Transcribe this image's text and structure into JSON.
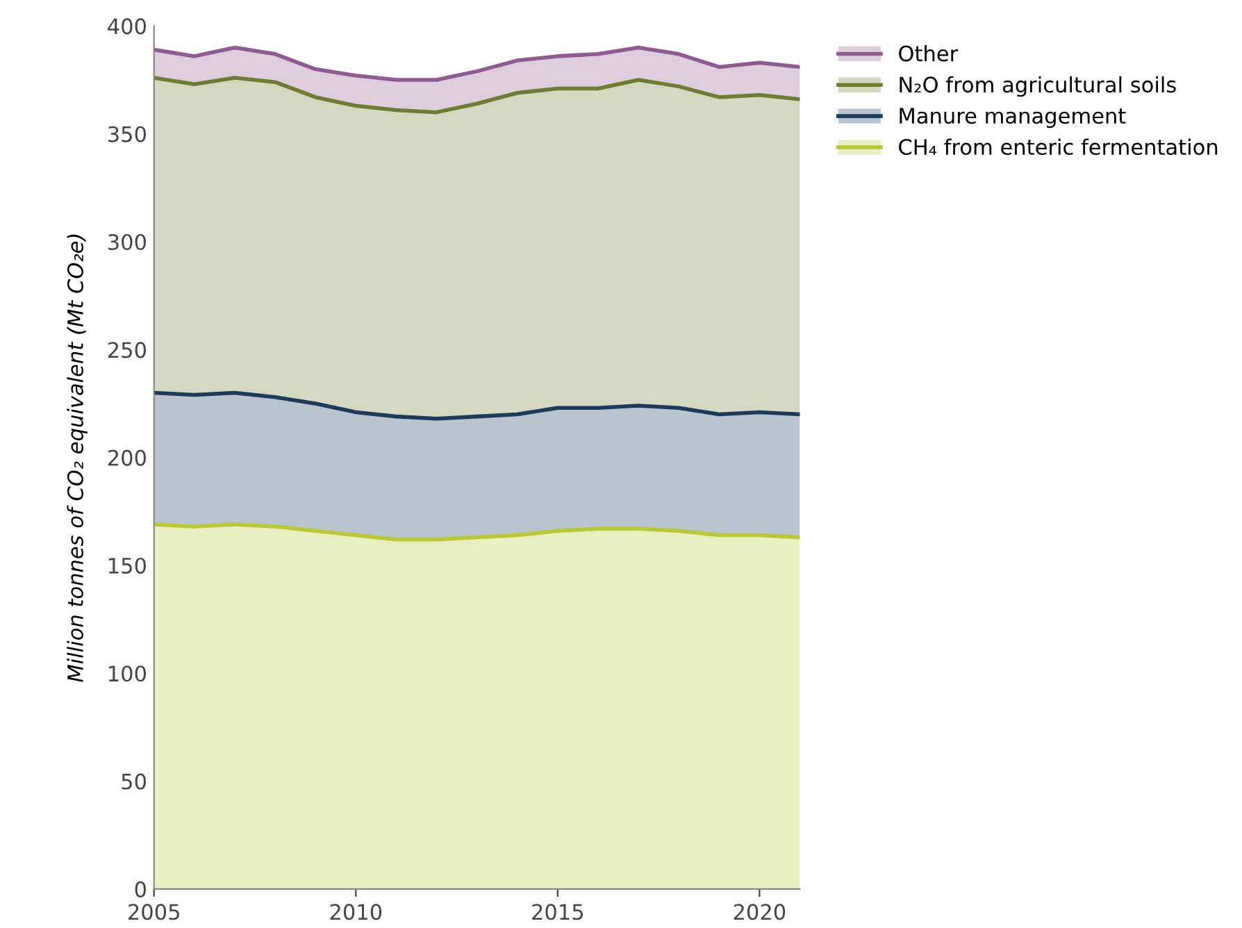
{
  "chart_data": {
    "type": "area",
    "stacked": true,
    "ylabel": "Million tonnes of CO₂ equivalent (Mt CO₂e)",
    "x": [
      2005,
      2006,
      2007,
      2008,
      2009,
      2010,
      2011,
      2012,
      2013,
      2014,
      2015,
      2016,
      2017,
      2018,
      2019,
      2020,
      2021
    ],
    "xlim": [
      2005,
      2021
    ],
    "xticks": [
      2005,
      2010,
      2015,
      2020
    ],
    "ylim": [
      0,
      400
    ],
    "yticks": [
      0,
      50,
      100,
      150,
      200,
      250,
      300,
      350,
      400
    ],
    "grid": false,
    "legend": "top right",
    "series": [
      {
        "name": "CH₄ from enteric fermentation",
        "color": "#b9c934",
        "values": [
          169,
          168,
          169,
          168,
          166,
          164,
          162,
          162,
          163,
          164,
          166,
          167,
          167,
          166,
          164,
          164,
          163
        ]
      },
      {
        "name": "Manure management",
        "color": "#1b3a5c",
        "values": [
          61,
          61,
          61,
          60,
          59,
          57,
          57,
          56,
          56,
          56,
          57,
          56,
          57,
          57,
          56,
          57,
          57
        ]
      },
      {
        "name": "N₂O from agricultural soils",
        "color": "#6f7d33",
        "values": [
          146,
          144,
          146,
          146,
          142,
          142,
          142,
          142,
          145,
          149,
          148,
          148,
          151,
          149,
          147,
          147,
          146
        ]
      },
      {
        "name": "Other",
        "color": "#8f5b90",
        "values": [
          13,
          13,
          14,
          13,
          13,
          14,
          14,
          15,
          15,
          15,
          15,
          16,
          15,
          15,
          14,
          15,
          15
        ]
      }
    ]
  }
}
